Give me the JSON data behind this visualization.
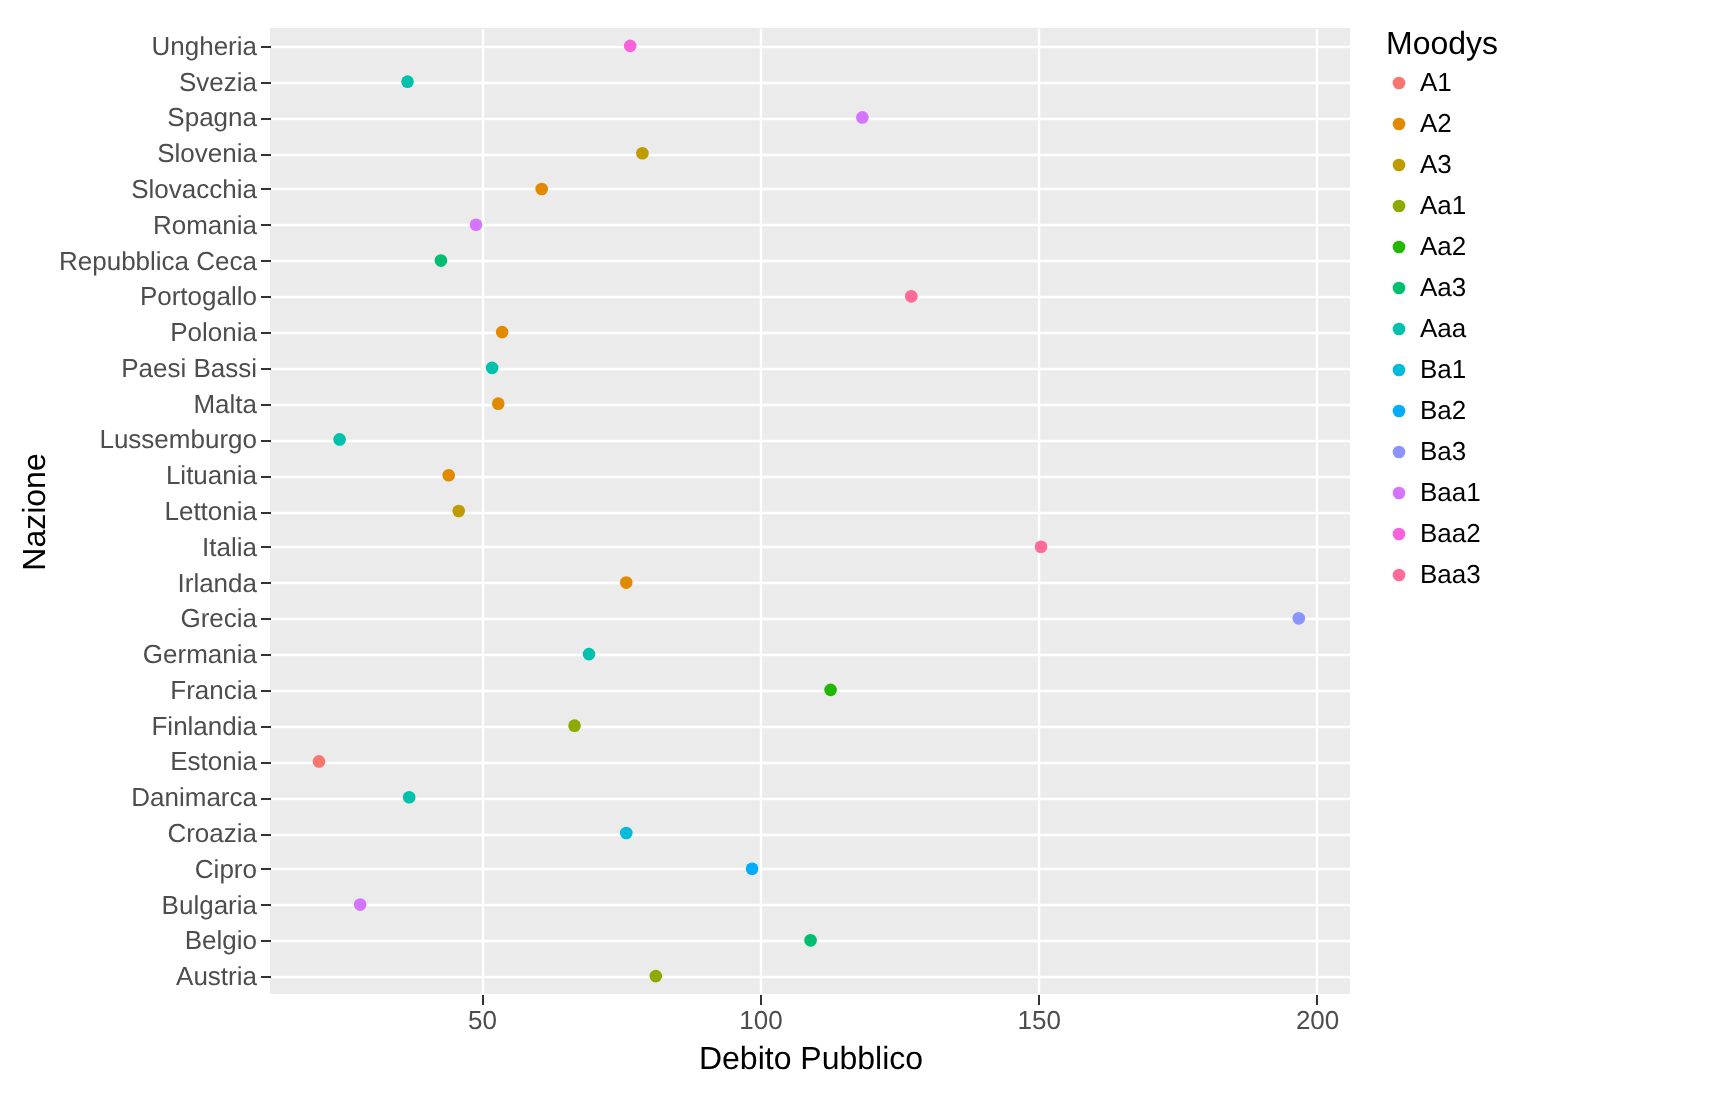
{
  "chart_data": {
    "type": "scatter",
    "orientation": "horizontal",
    "xlabel": "Debito Pubblico",
    "ylabel": "Nazione",
    "legend_title": "Moodys",
    "legend": "right",
    "grid": true,
    "marker": "circle",
    "categories": [
      "Ungheria",
      "Svezia",
      "Spagna",
      "Slovenia",
      "Slovacchia",
      "Romania",
      "Repubblica Ceca",
      "Portogallo",
      "Polonia",
      "Paesi Bassi",
      "Malta",
      "Lussemburgo",
      "Lituania",
      "Lettonia",
      "Italia",
      "Irlanda",
      "Grecia",
      "Germania",
      "Francia",
      "Finlandia",
      "Estonia",
      "Danimarca",
      "Croazia",
      "Cipro",
      "Bulgaria",
      "Belgio",
      "Austria"
    ],
    "xlim": [
      12,
      206
    ],
    "xticks": [
      50,
      100,
      150,
      200
    ],
    "series": [
      {
        "name": "A1",
        "color": "#f8766d",
        "values": [
          null,
          null,
          null,
          null,
          null,
          null,
          null,
          null,
          null,
          null,
          null,
          null,
          null,
          null,
          null,
          null,
          null,
          null,
          null,
          null,
          20.8,
          null,
          null,
          null,
          null,
          null,
          null
        ]
      },
      {
        "name": "A2",
        "color": "#e18a00",
        "values": [
          null,
          null,
          null,
          null,
          60.8,
          null,
          null,
          null,
          53.7,
          null,
          53.0,
          null,
          44.1,
          null,
          null,
          76.0,
          null,
          null,
          null,
          null,
          null,
          null,
          null,
          null,
          null,
          null,
          null
        ]
      },
      {
        "name": "A3",
        "color": "#be9c00",
        "values": [
          null,
          null,
          null,
          78.9,
          null,
          null,
          null,
          null,
          null,
          null,
          null,
          null,
          null,
          45.9,
          null,
          null,
          null,
          null,
          null,
          null,
          null,
          null,
          null,
          null,
          null,
          null,
          null
        ]
      },
      {
        "name": "Aa1",
        "color": "#8cab00",
        "values": [
          null,
          null,
          null,
          null,
          null,
          null,
          null,
          null,
          null,
          null,
          null,
          null,
          null,
          null,
          null,
          null,
          null,
          null,
          null,
          66.7,
          null,
          null,
          null,
          null,
          null,
          null,
          81.3
        ]
      },
      {
        "name": "Aa2",
        "color": "#24b700",
        "values": [
          null,
          null,
          null,
          null,
          null,
          null,
          null,
          null,
          null,
          null,
          null,
          null,
          null,
          null,
          null,
          null,
          null,
          null,
          112.7,
          null,
          null,
          null,
          null,
          null,
          null,
          null,
          null
        ]
      },
      {
        "name": "Aa3",
        "color": "#00be70",
        "values": [
          null,
          null,
          null,
          null,
          null,
          null,
          42.7,
          null,
          null,
          null,
          null,
          null,
          null,
          null,
          null,
          null,
          null,
          null,
          null,
          null,
          null,
          null,
          null,
          null,
          null,
          109.1,
          null
        ]
      },
      {
        "name": "Aaa",
        "color": "#00c1ab",
        "values": [
          null,
          36.7,
          null,
          null,
          null,
          null,
          null,
          null,
          null,
          51.9,
          null,
          24.5,
          null,
          null,
          null,
          null,
          null,
          69.3,
          null,
          null,
          null,
          37.0,
          null,
          null,
          null,
          null,
          null
        ]
      },
      {
        "name": "Ba1",
        "color": "#00bbda",
        "values": [
          null,
          null,
          null,
          null,
          null,
          null,
          null,
          null,
          null,
          null,
          null,
          null,
          null,
          null,
          null,
          null,
          null,
          null,
          null,
          null,
          null,
          null,
          76.0,
          null,
          null,
          null,
          null
        ]
      },
      {
        "name": "Ba2",
        "color": "#00acfc",
        "values": [
          null,
          null,
          null,
          null,
          null,
          null,
          null,
          null,
          null,
          null,
          null,
          null,
          null,
          null,
          null,
          null,
          null,
          null,
          null,
          null,
          null,
          null,
          null,
          98.6,
          null,
          null,
          null
        ]
      },
      {
        "name": "Ba3",
        "color": "#8b93ff",
        "values": [
          null,
          null,
          null,
          null,
          null,
          null,
          null,
          null,
          null,
          null,
          null,
          null,
          null,
          null,
          null,
          null,
          196.8,
          null,
          null,
          null,
          null,
          null,
          null,
          null,
          null,
          null,
          null
        ]
      },
      {
        "name": "Baa1",
        "color": "#d575fe",
        "values": [
          null,
          null,
          118.4,
          null,
          null,
          49.0,
          null,
          null,
          null,
          null,
          null,
          null,
          null,
          null,
          null,
          null,
          null,
          null,
          null,
          null,
          null,
          null,
          null,
          null,
          28.2,
          null,
          null
        ]
      },
      {
        "name": "Baa2",
        "color": "#f962dd",
        "values": [
          76.7,
          null,
          null,
          null,
          null,
          null,
          null,
          null,
          null,
          null,
          null,
          null,
          null,
          null,
          null,
          null,
          null,
          null,
          null,
          null,
          null,
          null,
          null,
          null,
          null,
          null,
          null
        ]
      },
      {
        "name": "Baa3",
        "color": "#ff6a98",
        "values": [
          null,
          null,
          null,
          null,
          null,
          null,
          null,
          127.2,
          null,
          null,
          null,
          null,
          null,
          null,
          150.5,
          null,
          null,
          null,
          null,
          null,
          null,
          null,
          null,
          null,
          null,
          null,
          null
        ]
      }
    ]
  }
}
